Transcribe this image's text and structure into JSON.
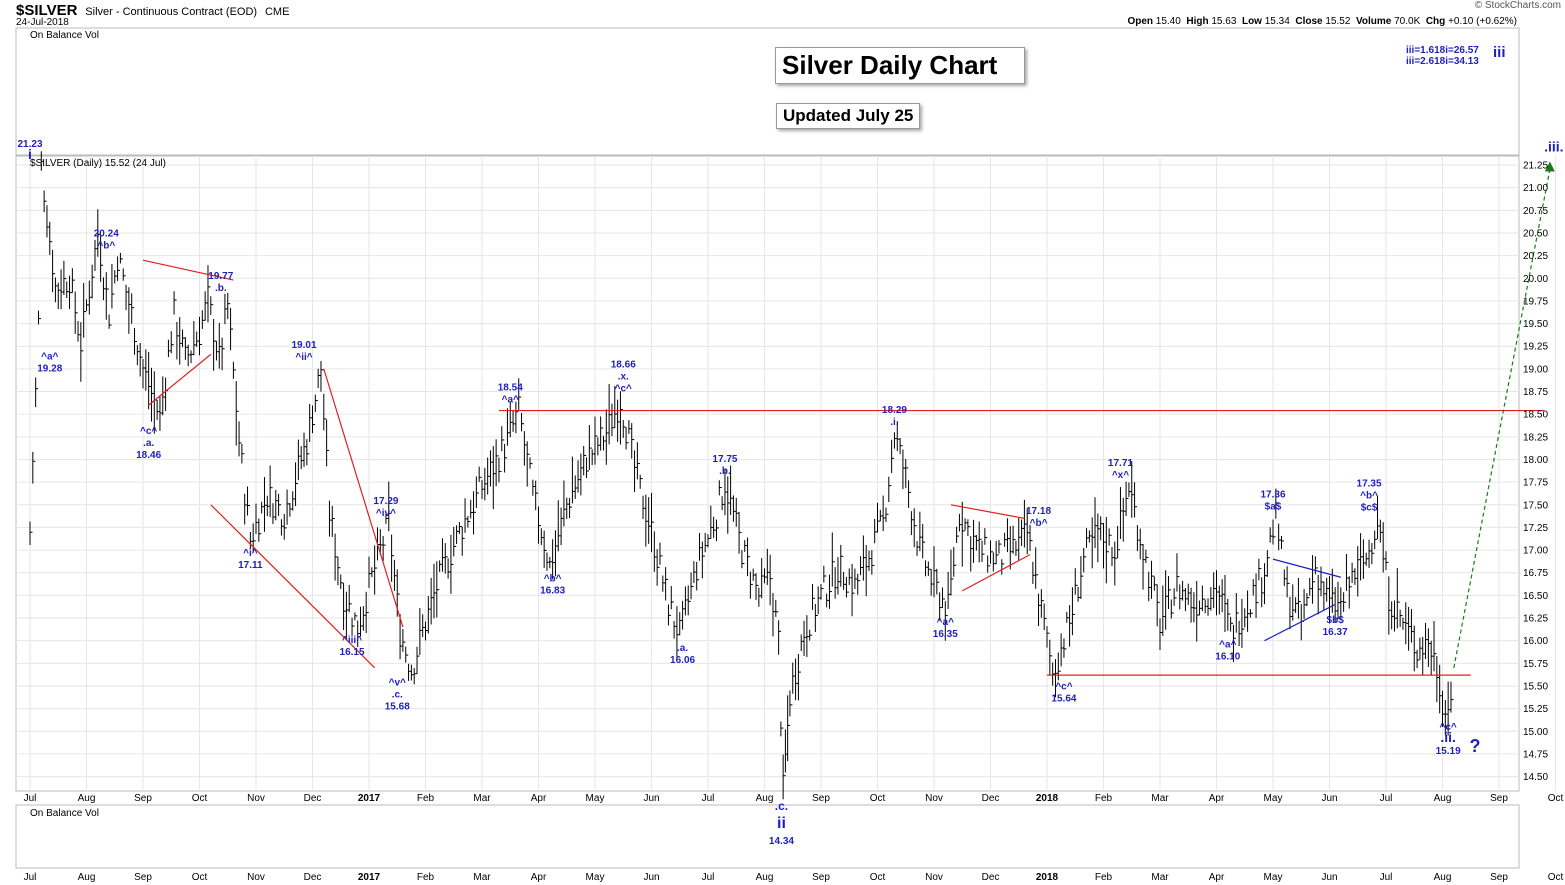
{
  "header": {
    "symbol": "$SILVER",
    "description": "Silver - Continuous Contract (EOD)",
    "exchange": "CME",
    "date": "24-Jul-2018",
    "open_label": "Open",
    "open": "15.40",
    "high_label": "High",
    "high": "15.63",
    "low_label": "Low",
    "low": "15.34",
    "close_label": "Close",
    "close": "15.52",
    "volume_label": "Volume",
    "volume": "70.0K",
    "chg_label": "Chg",
    "chg": "+0.10 (+0.62%)",
    "brand": "© StockCharts.com"
  },
  "panels": {
    "top_indicator": "On Balance Vol",
    "price_legend": "$SILVER (Daily) 15.52 (24 Jul)",
    "bottom_indicator": "On Balance Vol"
  },
  "titles": {
    "main": "Silver Daily Chart",
    "updated": "Updated July 25"
  },
  "fib_notes": [
    "iii=1.618i=26.57",
    "iii=2.618i=34.13"
  ],
  "fib_wave": "iii",
  "colors": {
    "bars": "#000000",
    "labels": "#1f1fbf",
    "trendlines": "#e02020",
    "projection": "#1a7a1a",
    "triangle": "#2020c0"
  },
  "chart_data": {
    "type": "ohlc",
    "ylim": [
      14.25,
      21.35
    ],
    "y_ticks": [
      "21.25",
      "21.00",
      "20.75",
      "20.50",
      "20.25",
      "20.00",
      "19.75",
      "19.50",
      "19.25",
      "19.00",
      "18.75",
      "18.50",
      "18.25",
      "18.00",
      "17.75",
      "17.50",
      "17.25",
      "17.00",
      "16.75",
      "16.50",
      "16.25",
      "16.00",
      "15.75",
      "15.50",
      "15.25",
      "15.00",
      "14.75",
      "14.50"
    ],
    "x_ticks": [
      "Jul",
      "Aug",
      "Sep",
      "Oct",
      "Nov",
      "Dec",
      "2017",
      "Feb",
      "Mar",
      "Apr",
      "May",
      "Jun",
      "Jul",
      "Aug",
      "Sep",
      "Oct",
      "Nov",
      "Dec",
      "2018",
      "Feb",
      "Mar",
      "Apr",
      "May",
      "Jun",
      "Jul",
      "Aug",
      "Sep",
      "Oct"
    ],
    "path_points": [
      {
        "month": 0,
        "price": 17.2
      },
      {
        "month": 0.05,
        "price": 18.0
      },
      {
        "month": 0.15,
        "price": 19.5
      },
      {
        "month": 0.2,
        "price": 21.23
      },
      {
        "month": 0.45,
        "price": 19.9
      },
      {
        "month": 0.7,
        "price": 20.0
      },
      {
        "month": 0.9,
        "price": 19.28
      },
      {
        "month": 1.2,
        "price": 20.5
      },
      {
        "month": 1.4,
        "price": 19.6
      },
      {
        "month": 1.55,
        "price": 20.24
      },
      {
        "month": 1.8,
        "price": 19.6
      },
      {
        "month": 2.0,
        "price": 19.0
      },
      {
        "month": 2.3,
        "price": 18.46
      },
      {
        "month": 2.55,
        "price": 19.6
      },
      {
        "month": 2.75,
        "price": 19.1
      },
      {
        "month": 3.0,
        "price": 19.4
      },
      {
        "month": 3.15,
        "price": 19.77
      },
      {
        "month": 3.35,
        "price": 19.1
      },
      {
        "month": 3.5,
        "price": 19.7
      },
      {
        "month": 3.7,
        "price": 18.2
      },
      {
        "month": 3.9,
        "price": 17.11
      },
      {
        "month": 4.2,
        "price": 17.6
      },
      {
        "month": 4.5,
        "price": 17.4
      },
      {
        "month": 4.9,
        "price": 18.2
      },
      {
        "month": 5.15,
        "price": 19.01
      },
      {
        "month": 5.3,
        "price": 17.4
      },
      {
        "month": 5.55,
        "price": 16.5
      },
      {
        "month": 5.8,
        "price": 16.15
      },
      {
        "month": 6.1,
        "price": 16.8
      },
      {
        "month": 6.35,
        "price": 17.29
      },
      {
        "month": 6.55,
        "price": 16.1
      },
      {
        "month": 6.75,
        "price": 15.68
      },
      {
        "month": 6.95,
        "price": 16.1
      },
      {
        "month": 7.2,
        "price": 16.6
      },
      {
        "month": 7.6,
        "price": 17.2
      },
      {
        "month": 8.0,
        "price": 17.7
      },
      {
        "month": 8.45,
        "price": 18.2
      },
      {
        "month": 8.65,
        "price": 18.54
      },
      {
        "month": 8.9,
        "price": 17.6
      },
      {
        "month": 9.2,
        "price": 16.83
      },
      {
        "month": 9.5,
        "price": 17.5
      },
      {
        "month": 9.85,
        "price": 18.0
      },
      {
        "month": 10.2,
        "price": 18.3
      },
      {
        "month": 10.45,
        "price": 18.66
      },
      {
        "month": 10.7,
        "price": 17.9
      },
      {
        "month": 11.0,
        "price": 17.2
      },
      {
        "month": 11.3,
        "price": 16.4
      },
      {
        "month": 11.5,
        "price": 16.06
      },
      {
        "month": 11.8,
        "price": 16.8
      },
      {
        "month": 12.1,
        "price": 17.3
      },
      {
        "month": 12.3,
        "price": 17.75
      },
      {
        "month": 12.6,
        "price": 17.0
      },
      {
        "month": 12.9,
        "price": 16.5
      },
      {
        "month": 13.1,
        "price": 16.7
      },
      {
        "month": 13.25,
        "price": 16.0
      },
      {
        "month": 13.33,
        "price": 14.34
      },
      {
        "month": 13.45,
        "price": 15.4
      },
      {
        "month": 13.7,
        "price": 16.1
      },
      {
        "month": 14.0,
        "price": 16.5
      },
      {
        "month": 14.3,
        "price": 16.8
      },
      {
        "month": 14.6,
        "price": 16.6
      },
      {
        "month": 14.9,
        "price": 17.0
      },
      {
        "month": 15.1,
        "price": 17.3
      },
      {
        "month": 15.3,
        "price": 18.29
      },
      {
        "month": 15.5,
        "price": 17.8
      },
      {
        "month": 15.75,
        "price": 17.0
      },
      {
        "month": 16.0,
        "price": 16.6
      },
      {
        "month": 16.25,
        "price": 16.35
      },
      {
        "month": 16.45,
        "price": 17.4
      },
      {
        "month": 16.8,
        "price": 17.0
      },
      {
        "month": 17.1,
        "price": 16.9
      },
      {
        "month": 17.4,
        "price": 17.0
      },
      {
        "month": 17.65,
        "price": 17.18
      },
      {
        "month": 17.85,
        "price": 16.5
      },
      {
        "month": 18.1,
        "price": 15.64
      },
      {
        "month": 18.4,
        "price": 16.2
      },
      {
        "month": 18.65,
        "price": 16.9
      },
      {
        "month": 18.9,
        "price": 17.2
      },
      {
        "month": 19.2,
        "price": 17.0
      },
      {
        "month": 19.45,
        "price": 17.71
      },
      {
        "month": 19.7,
        "price": 17.0
      },
      {
        "month": 20.0,
        "price": 16.2
      },
      {
        "month": 20.3,
        "price": 16.6
      },
      {
        "month": 20.6,
        "price": 16.4
      },
      {
        "month": 21.0,
        "price": 16.6
      },
      {
        "month": 21.25,
        "price": 16.1
      },
      {
        "month": 21.55,
        "price": 16.4
      },
      {
        "month": 21.8,
        "price": 16.7
      },
      {
        "month": 22.05,
        "price": 17.36
      },
      {
        "month": 22.25,
        "price": 16.5
      },
      {
        "month": 22.5,
        "price": 16.2
      },
      {
        "month": 22.75,
        "price": 16.8
      },
      {
        "month": 23.0,
        "price": 16.4
      },
      {
        "month": 23.2,
        "price": 16.37
      },
      {
        "month": 23.4,
        "price": 16.7
      },
      {
        "month": 23.65,
        "price": 16.9
      },
      {
        "month": 23.85,
        "price": 17.35
      },
      {
        "month": 24.05,
        "price": 16.5
      },
      {
        "month": 24.3,
        "price": 16.2
      },
      {
        "month": 24.55,
        "price": 15.9
      },
      {
        "month": 24.75,
        "price": 16.0
      },
      {
        "month": 24.9,
        "price": 15.7
      },
      {
        "month": 25.05,
        "price": 15.19
      },
      {
        "month": 25.2,
        "price": 15.52
      }
    ],
    "wave_labels": [
      {
        "month": 0.0,
        "price": 21.23,
        "pos": "above",
        "lines": [
          "21.23",
          "i"
        ]
      },
      {
        "month": 0.35,
        "price": 19.28,
        "pos": "below",
        "lines": [
          "^a^",
          "19.28"
        ]
      },
      {
        "month": 1.35,
        "price": 20.24,
        "pos": "above",
        "lines": [
          "20.24",
          "^b^"
        ]
      },
      {
        "month": 2.1,
        "price": 18.46,
        "pos": "below",
        "lines": [
          "^c^",
          ".a.",
          "18.46"
        ]
      },
      {
        "month": 3.2,
        "price": 19.77,
        "pos": "above-right",
        "lines": [
          "19.77",
          ".b."
        ]
      },
      {
        "month": 3.9,
        "price": 17.11,
        "pos": "below",
        "lines": [
          "^i^",
          "17.11"
        ]
      },
      {
        "month": 4.85,
        "price": 19.01,
        "pos": "above",
        "lines": [
          "19.01",
          "^ii^"
        ]
      },
      {
        "month": 5.7,
        "price": 16.15,
        "pos": "below",
        "lines": [
          "^iii^",
          "16.15"
        ]
      },
      {
        "month": 6.3,
        "price": 17.29,
        "pos": "above",
        "lines": [
          "17.29",
          "^iv^"
        ]
      },
      {
        "month": 6.5,
        "price": 15.68,
        "pos": "below",
        "lines": [
          "^v^",
          ".c.",
          "15.68"
        ]
      },
      {
        "month": 8.5,
        "price": 18.54,
        "pos": "above",
        "lines": [
          "18.54",
          "^a^"
        ]
      },
      {
        "month": 9.25,
        "price": 16.83,
        "pos": "below",
        "lines": [
          "^b^",
          "16.83"
        ]
      },
      {
        "month": 10.5,
        "price": 18.66,
        "pos": "above",
        "lines": [
          "18.66",
          ".x.",
          "^c^"
        ]
      },
      {
        "month": 11.55,
        "price": 16.06,
        "pos": "below",
        "lines": [
          ".a.",
          "16.06"
        ]
      },
      {
        "month": 12.3,
        "price": 17.75,
        "pos": "above",
        "lines": [
          "17.75",
          ".b."
        ]
      },
      {
        "month": 15.3,
        "price": 18.29,
        "pos": "above",
        "lines": [
          "18.29",
          ".i."
        ]
      },
      {
        "month": 16.2,
        "price": 16.35,
        "pos": "below",
        "lines": [
          "^a^",
          "16.35"
        ]
      },
      {
        "month": 17.85,
        "price": 17.18,
        "pos": "above",
        "lines": [
          "17.18",
          "^b^"
        ]
      },
      {
        "month": 18.3,
        "price": 15.64,
        "pos": "below",
        "lines": [
          "^c^",
          "15.64"
        ]
      },
      {
        "month": 19.3,
        "price": 17.71,
        "pos": "above",
        "lines": [
          "17.71",
          "^x^"
        ]
      },
      {
        "month": 21.2,
        "price": 16.1,
        "pos": "below",
        "lines": [
          "^a^",
          "16.10"
        ]
      },
      {
        "month": 22.0,
        "price": 17.36,
        "pos": "above",
        "lines": [
          "17.36",
          "$a$"
        ]
      },
      {
        "month": 23.1,
        "price": 16.37,
        "pos": "below",
        "lines": [
          "$b$",
          "16.37"
        ]
      },
      {
        "month": 23.7,
        "price": 17.35,
        "pos": "above",
        "lines": [
          "17.35",
          "^b^",
          "$c$"
        ]
      },
      {
        "month": 25.1,
        "price": 15.19,
        "pos": "below",
        "lines": [
          "^c^",
          ".ii.",
          "15.19"
        ]
      }
    ],
    "wave_ii": {
      "month": 13.3,
      "lines": [
        ".c.",
        "ii",
        "14.34"
      ]
    },
    "projection_label": ".iii.",
    "question_mark": "?",
    "hlines": [
      {
        "from_month": 8.3,
        "to_month": 26.8,
        "price": 18.54
      },
      {
        "from_month": 18.0,
        "to_month": 25.5,
        "price": 15.62
      }
    ],
    "trendlines": [
      {
        "from": [
          2.0,
          20.2
        ],
        "to": [
          3.6,
          19.98
        ],
        "color": "red"
      },
      {
        "from": [
          2.1,
          18.6
        ],
        "to": [
          3.2,
          19.16
        ],
        "color": "red"
      },
      {
        "from": [
          3.2,
          17.5
        ],
        "to": [
          6.1,
          15.7
        ],
        "color": "red"
      },
      {
        "from": [
          5.2,
          19.0
        ],
        "to": [
          6.6,
          16.15
        ],
        "color": "red"
      },
      {
        "from": [
          16.3,
          17.5
        ],
        "to": [
          17.6,
          17.35
        ],
        "color": "red"
      },
      {
        "from": [
          16.5,
          16.55
        ],
        "to": [
          17.7,
          16.95
        ],
        "color": "red"
      },
      {
        "from": [
          21.85,
          16.0
        ],
        "to": [
          23.1,
          16.4
        ],
        "color": "blue"
      },
      {
        "from": [
          22.0,
          16.9
        ],
        "to": [
          23.2,
          16.7
        ],
        "color": "blue"
      }
    ],
    "projection": {
      "from": [
        25.2,
        15.7
      ],
      "to": [
        26.9,
        21.2
      ]
    }
  }
}
